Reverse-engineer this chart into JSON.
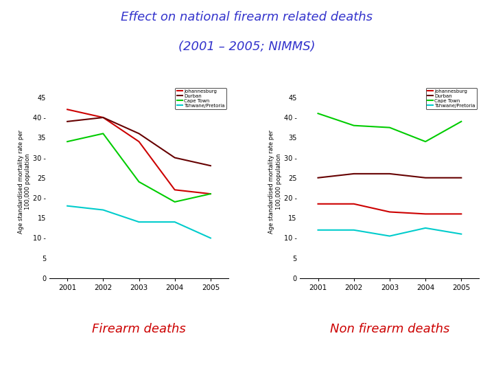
{
  "title_line1": "Effect on national firearm related deaths",
  "title_line2": "(2001 – 2005; NIMMS)",
  "title_color": "#3333cc",
  "years": [
    2001,
    2002,
    2003,
    2004,
    2005
  ],
  "firearm": {
    "johannesburg": [
      42,
      40,
      34,
      22,
      21
    ],
    "durban": [
      39,
      40,
      36,
      30,
      28
    ],
    "cape_town": [
      34,
      36,
      24,
      19,
      21
    ],
    "tshwane": [
      18,
      17,
      14,
      14,
      10
    ]
  },
  "non_firearm": {
    "johannesburg": [
      18.5,
      18.5,
      16.5,
      16,
      16
    ],
    "durban": [
      25,
      26,
      26,
      25,
      25
    ],
    "cape_town": [
      41,
      38,
      37.5,
      34,
      39
    ],
    "tshwane": [
      12,
      12,
      10.5,
      12.5,
      11
    ]
  },
  "colors": {
    "johannesburg": "#cc0000",
    "durban": "#660000",
    "cape_town": "#00cc00",
    "tshwane": "#00cccc"
  },
  "legend_labels": [
    "Johannesburg",
    "Durban",
    "Cape Town",
    "Tshwane/Pretoria"
  ],
  "ylabel": "Age standardised mortality rate per\n100,000 population",
  "ylim": [
    0,
    48
  ],
  "yticks": [
    0,
    5,
    10,
    15,
    20,
    25,
    30,
    35,
    40,
    45
  ],
  "subtitle_firearm": "Firearm deaths",
  "subtitle_non_firearm": "Non firearm deaths",
  "subtitle_color": "#cc0000",
  "background_color": "#ffffff",
  "line_width": 1.5
}
